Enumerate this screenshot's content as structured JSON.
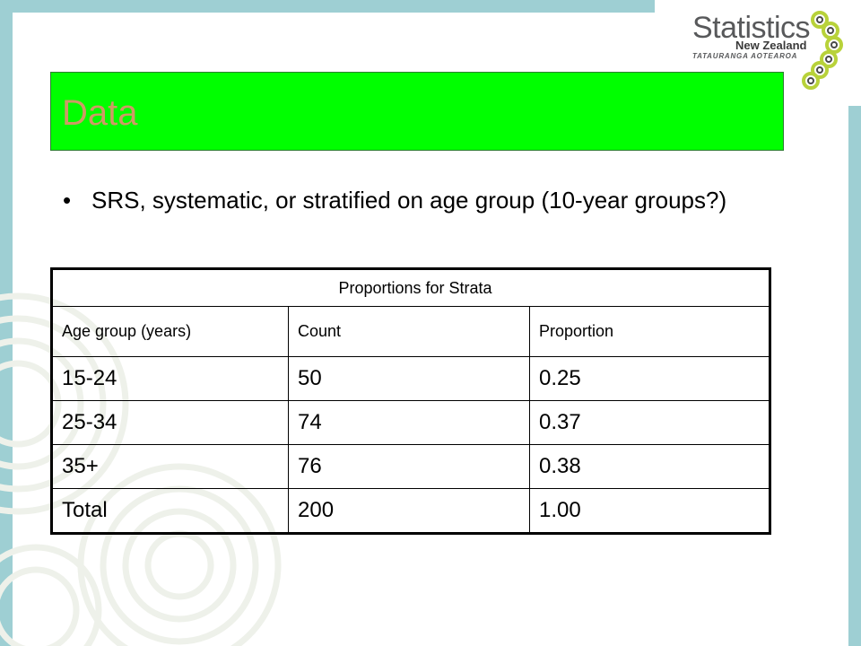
{
  "slide": {
    "title": "Data",
    "bullet": "SRS, systematic, or stratified on age group (10-year groups?)"
  },
  "logo": {
    "word": "Statistics",
    "subtitle": "New Zealand",
    "maori": "TATAURANGA AOTEAROA",
    "icon": "koru-chain-icon"
  },
  "table": {
    "caption": "Proportions for Strata",
    "headers": [
      "Age group (years)",
      "Count",
      "Proportion"
    ],
    "rows": [
      [
        "15-24",
        "50",
        "0.25"
      ],
      [
        "25-34",
        "74",
        "0.37"
      ],
      [
        "35+",
        "76",
        "0.38"
      ],
      [
        "Total",
        "200",
        "1.00"
      ]
    ]
  },
  "colors": {
    "title_bar": "#00ff00",
    "title_text": "#ce9a65",
    "frame": "#9ecfd3"
  }
}
